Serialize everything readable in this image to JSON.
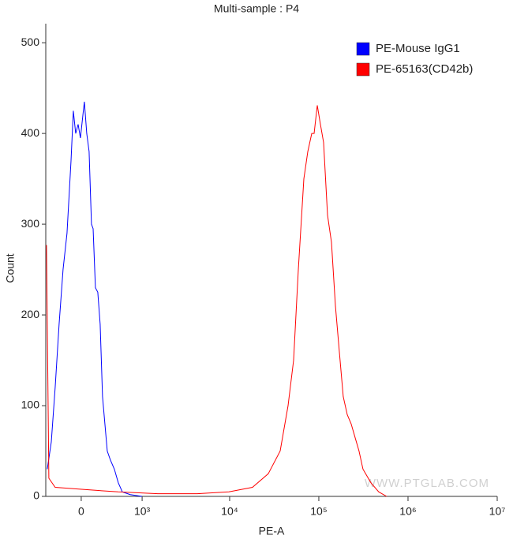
{
  "chart_data": {
    "type": "line",
    "title": "Multi-sample : P4",
    "x_label": "PE-A",
    "y_label": "Count",
    "xscale": "biexponential",
    "xlim": [
      -455,
      10000000
    ],
    "ylim": [
      0,
      521
    ],
    "xticks": [
      {
        "value": 0,
        "label": "0"
      },
      {
        "value": 1000,
        "label": "10³"
      },
      {
        "value": 10000,
        "label": "10⁴"
      },
      {
        "value": 100000,
        "label": "10⁵"
      },
      {
        "value": 1000000,
        "label": "10⁶"
      },
      {
        "value": 10000000,
        "label": "10⁷"
      }
    ],
    "yticks": [
      0,
      100,
      200,
      300,
      400,
      500
    ],
    "legend": "top-right",
    "watermark": "WWW.PTGLAB.COM",
    "series": [
      {
        "name": "PE-Mouse IgG1",
        "color": "#0000ff",
        "x": [
          -431,
          -370,
          -314,
          -261,
          -211,
          -163,
          -116,
          -89,
          -62,
          -35,
          -9,
          18,
          35,
          62,
          89,
          116,
          135,
          163,
          191,
          221,
          251,
          282,
          314,
          359,
          418,
          482,
          552,
          707,
          998
        ],
        "values": [
          30,
          60,
          120,
          190,
          250,
          290,
          370,
          425,
          400,
          410,
          395,
          420,
          435,
          400,
          380,
          300,
          295,
          230,
          225,
          190,
          110,
          80,
          50,
          40,
          30,
          15,
          5,
          2,
          0
        ]
      },
      {
        "name": "PE-65163(CD42b)",
        "color": "#ff0000",
        "x": [
          -444,
          -406,
          -314,
          -27,
          482,
          1538,
          4328,
          9800,
          18050,
          27100,
          36900,
          45200,
          52100,
          58900,
          67900,
          75200,
          83300,
          88500,
          96100,
          104200,
          113100,
          125200,
          138600,
          153400,
          169700,
          187900,
          208300,
          230500,
          255200,
          282500,
          312900,
          383700,
          470000,
          576400
        ],
        "values": [
          277,
          20,
          10,
          8,
          5,
          3,
          3,
          5,
          10,
          25,
          50,
          100,
          150,
          250,
          350,
          380,
          400,
          400,
          431,
          410,
          390,
          310,
          280,
          210,
          160,
          110,
          90,
          80,
          65,
          50,
          30,
          15,
          5,
          0
        ]
      }
    ]
  }
}
